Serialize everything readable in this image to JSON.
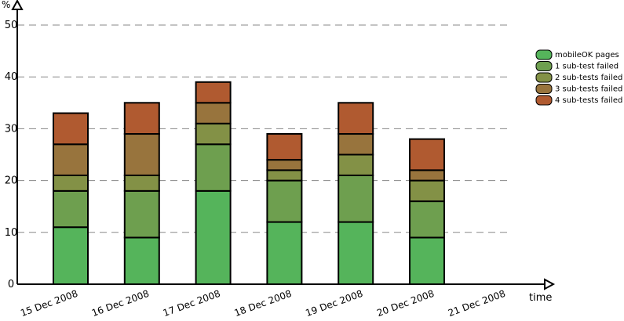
{
  "chart_data": {
    "type": "stacked-bar",
    "y_label": "%",
    "x_label": "time",
    "categories": [
      "15 Dec 2008",
      "16 Dec 2008",
      "17 Dec 2008",
      "18 Dec 2008",
      "19 Dec 2008",
      "20 Dec 2008",
      "21 Dec 2008"
    ],
    "series": [
      {
        "name": "mobileOK pages",
        "color": "#55b45b",
        "values": [
          11,
          9,
          18,
          12,
          12,
          9,
          0
        ]
      },
      {
        "name": "1 sub-test failed",
        "color": "#6e9f4f",
        "values": [
          7,
          9,
          9,
          8,
          9,
          7,
          0
        ]
      },
      {
        "name": "2 sub-tests failed",
        "color": "#839146",
        "values": [
          3,
          3,
          4,
          2,
          4,
          4,
          0
        ]
      },
      {
        "name": "3 sub-tests failed",
        "color": "#98743d",
        "values": [
          6,
          8,
          4,
          2,
          4,
          2,
          0
        ]
      },
      {
        "name": "4 sub-tests failed",
        "color": "#b05a30",
        "values": [
          6,
          6,
          4,
          5,
          6,
          6,
          0
        ]
      }
    ],
    "ylim": [
      0,
      50
    ],
    "yticks": [
      0,
      10,
      20,
      30,
      40,
      50
    ],
    "grid": true,
    "legend": "right"
  }
}
